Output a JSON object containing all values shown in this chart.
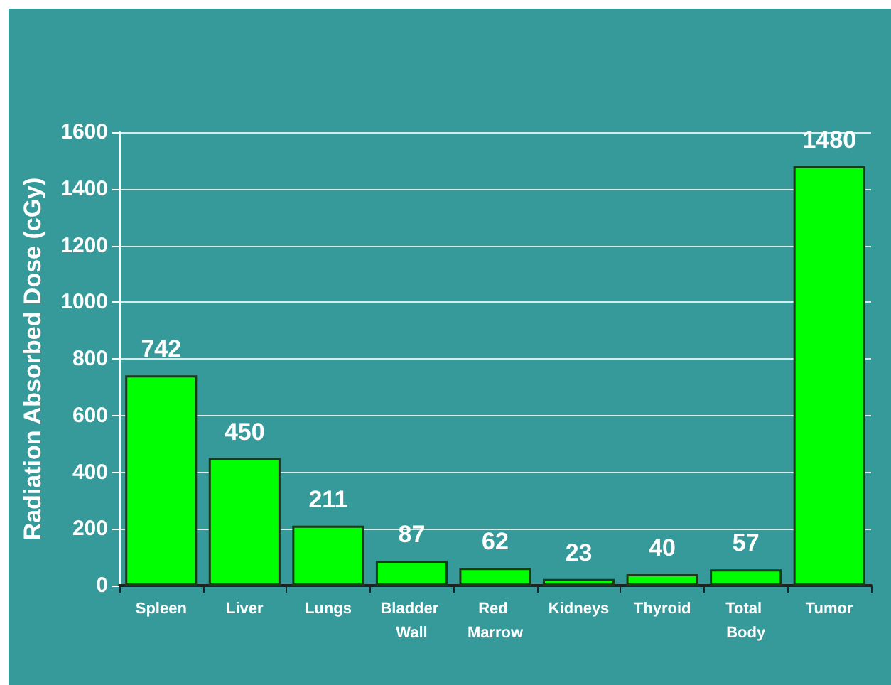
{
  "chart_data": {
    "type": "bar",
    "ylabel": "Radiation Absorbed Dose (cGy)",
    "categories": [
      "Spleen",
      "Liver",
      "Lungs",
      "Bladder Wall",
      "Red Marrow",
      "Kidneys",
      "Thyroid",
      "Total Body",
      "Tumor"
    ],
    "values": [
      742,
      450,
      211,
      87,
      62,
      23,
      40,
      57,
      1480
    ],
    "color": "#00ff00",
    "ylim": [
      0,
      1600
    ],
    "yticks": [
      0,
      200,
      400,
      600,
      800,
      1000,
      1200,
      1400,
      1600
    ],
    "grid": "y",
    "data_labels": true
  }
}
